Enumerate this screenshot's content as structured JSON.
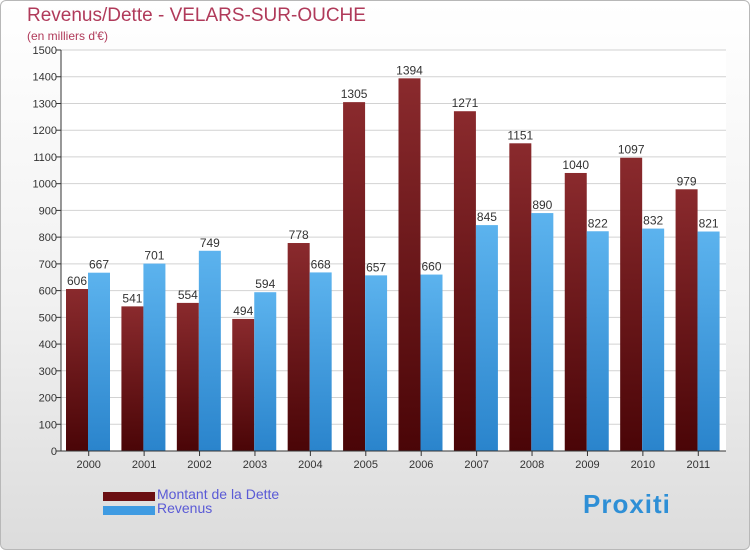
{
  "header": {
    "title": "Revenus/Dette - VELARS-SUR-OUCHE",
    "subtitle": "(en milliers d'€)"
  },
  "colors": {
    "dette": "#7a1c1f",
    "revenus": "#4aa6e6",
    "axis": "#333333",
    "grid": "#d2d2d2",
    "title": "#b03a5a",
    "legend_text": "#5a5ad6"
  },
  "legend": [
    {
      "label": "Montant de la Dette",
      "color": "#6b0f12"
    },
    {
      "label": "Revenus",
      "color": "#3f9be2"
    }
  ],
  "logo": {
    "text": "Proxiti"
  },
  "chart_data": {
    "type": "bar",
    "title": "Revenus/Dette - VELARS-SUR-OUCHE",
    "subtitle": "(en milliers d'€)",
    "xlabel": "",
    "ylabel": "",
    "ylim": [
      0,
      1500
    ],
    "yticks": [
      0,
      100,
      200,
      300,
      400,
      500,
      600,
      700,
      800,
      900,
      1000,
      1100,
      1200,
      1300,
      1400,
      1500
    ],
    "grid": true,
    "legend_position": "bottom-left",
    "categories": [
      "2000",
      "2001",
      "2002",
      "2003",
      "2004",
      "2005",
      "2006",
      "2007",
      "2008",
      "2009",
      "2010",
      "2011"
    ],
    "series": [
      {
        "name": "Montant de la Dette",
        "values": [
          606,
          541,
          554,
          494,
          778,
          1305,
          1394,
          1271,
          1151,
          1040,
          1097,
          979
        ]
      },
      {
        "name": "Revenus",
        "values": [
          667,
          701,
          749,
          594,
          668,
          657,
          660,
          845,
          890,
          822,
          832,
          821
        ]
      }
    ]
  }
}
